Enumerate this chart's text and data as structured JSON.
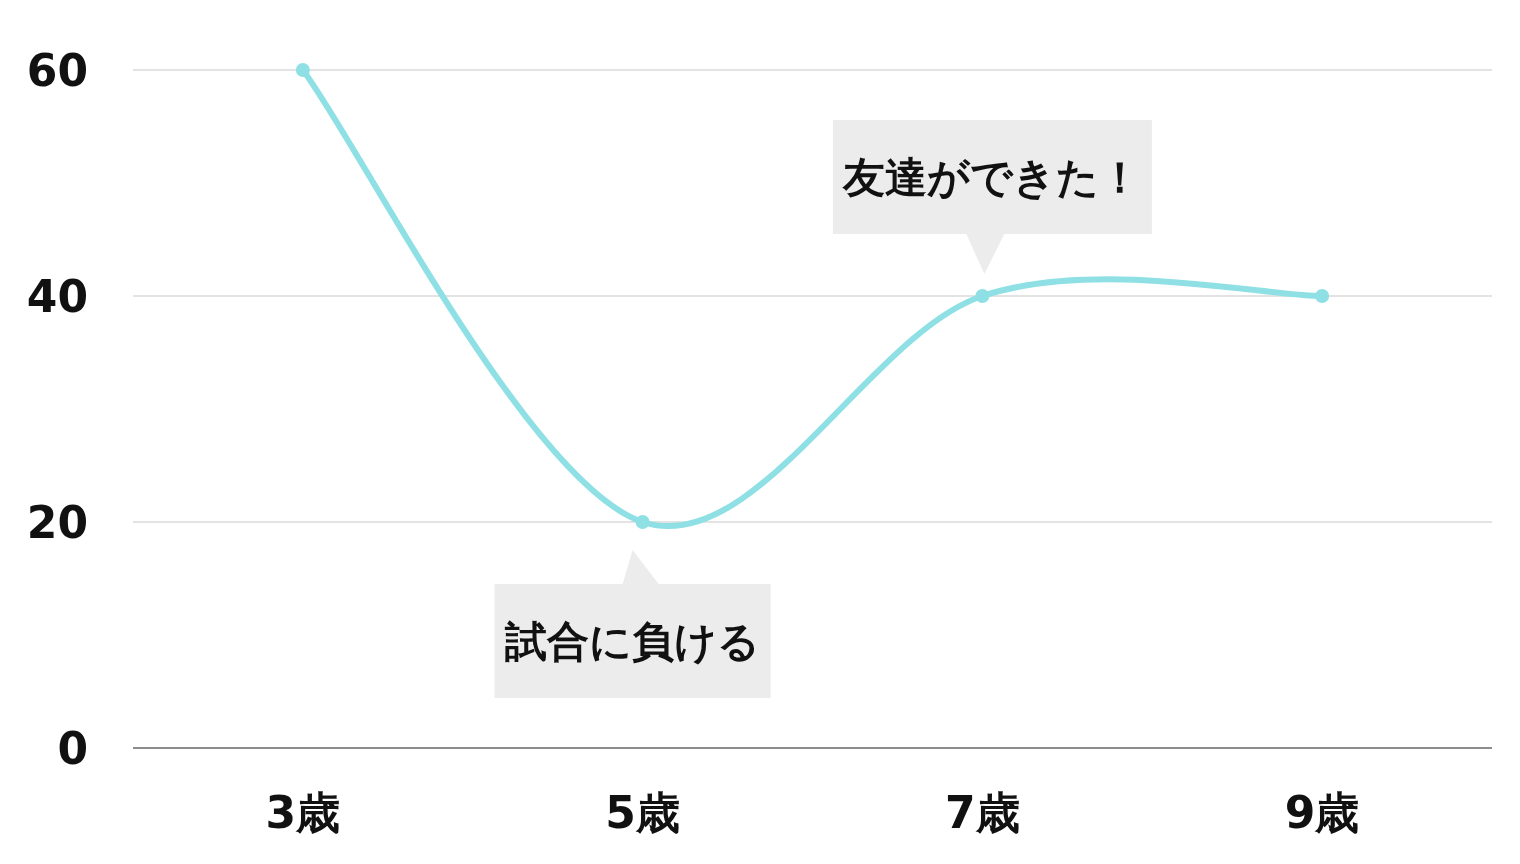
{
  "chart_data": {
    "type": "line",
    "categories": [
      "3歳",
      "5歳",
      "7歳",
      "9歳"
    ],
    "series": [
      {
        "color": "#8ee0e4",
        "values": [
          60,
          20,
          40,
          40
        ]
      }
    ],
    "ylim": [
      0,
      60
    ],
    "yticks": [
      0,
      20,
      40,
      60
    ],
    "grid": "y",
    "marker": "circle",
    "annotations": [
      {
        "text": "試合に負ける",
        "x": "5歳",
        "y": 20
      },
      {
        "text": "友達ができた！",
        "x": "7歳",
        "y": 40
      }
    ]
  }
}
